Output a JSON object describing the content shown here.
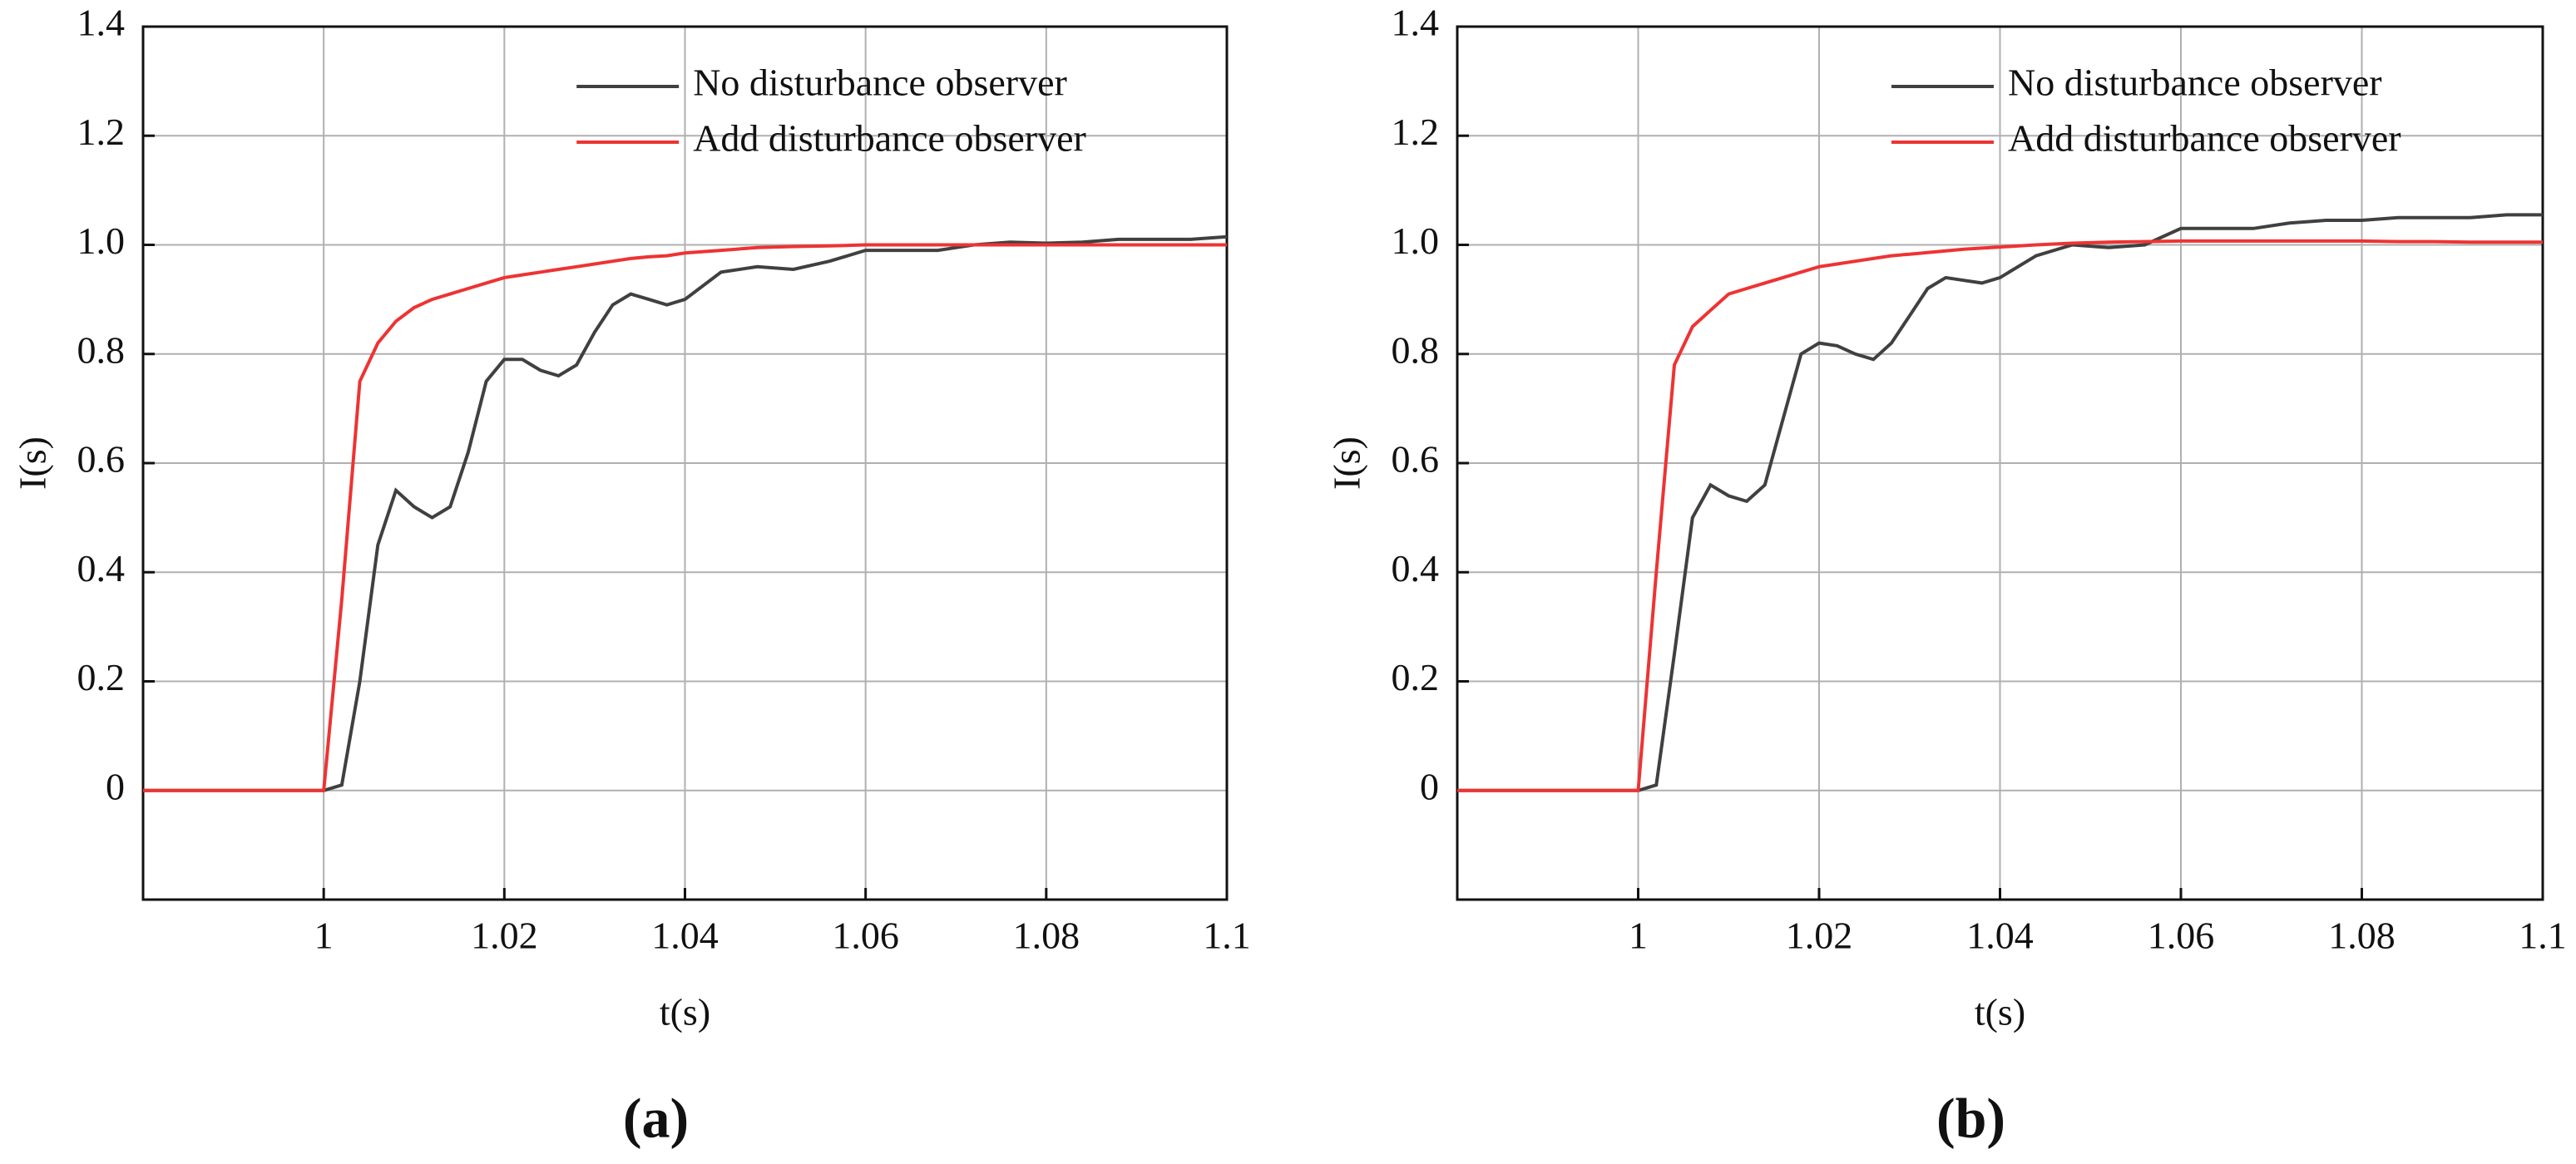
{
  "chart_data": [
    {
      "type": "line",
      "caption": "(a)",
      "xlabel": "t(s)",
      "ylabel": "I(s)",
      "xlim": [
        0.98,
        1.1
      ],
      "ylim": [
        -0.2,
        1.4
      ],
      "xticks": [
        1,
        1.02,
        1.04,
        1.06,
        1.08,
        1.1
      ],
      "yticks": [
        0,
        0.2,
        0.4,
        0.6,
        0.8,
        {
          "value": 1,
          "label": "1.0"
        },
        1.2,
        1.4
      ],
      "grid": true,
      "legend": "upper right",
      "x": [
        0.98,
        1.0,
        1.002,
        1.004,
        1.006,
        1.008,
        1.01,
        1.012,
        1.014,
        1.016,
        1.018,
        1.02,
        1.022,
        1.024,
        1.026,
        1.028,
        1.03,
        1.032,
        1.034,
        1.036,
        1.038,
        1.04,
        1.044,
        1.048,
        1.052,
        1.056,
        1.06,
        1.064,
        1.068,
        1.072,
        1.076,
        1.08,
        1.084,
        1.088,
        1.092,
        1.096,
        1.1
      ],
      "series": [
        {
          "name": "No disturbance observer",
          "color": "#404040",
          "values": [
            0,
            0,
            0.01,
            0.2,
            0.45,
            0.55,
            0.52,
            0.5,
            0.52,
            0.62,
            0.75,
            0.79,
            0.79,
            0.77,
            0.76,
            0.78,
            0.84,
            0.89,
            0.91,
            0.9,
            0.89,
            0.9,
            0.95,
            0.96,
            0.955,
            0.97,
            0.99,
            0.99,
            0.99,
            1.0,
            1.005,
            1.003,
            1.005,
            1.01,
            1.01,
            1.01,
            1.015
          ]
        },
        {
          "name": "Add disturbance observer",
          "color": "#ee3333",
          "values": [
            0,
            0,
            0.35,
            0.75,
            0.82,
            0.86,
            0.885,
            0.9,
            0.91,
            0.92,
            0.93,
            0.94,
            0.945,
            0.95,
            0.955,
            0.96,
            0.965,
            0.97,
            0.975,
            0.978,
            0.98,
            0.985,
            0.99,
            0.995,
            0.997,
            0.998,
            1.0,
            1.0,
            1.0,
            1.0,
            1.0,
            1.0,
            1.0,
            1.0,
            1.0,
            1.0,
            1.0
          ]
        }
      ]
    },
    {
      "type": "line",
      "caption": "(b)",
      "xlabel": "t(s)",
      "ylabel": "I(s)",
      "xlim": [
        0.98,
        1.1
      ],
      "ylim": [
        -0.2,
        1.4
      ],
      "xticks": [
        1,
        1.02,
        1.04,
        1.06,
        1.08,
        1.1
      ],
      "yticks": [
        0,
        0.2,
        0.4,
        0.6,
        0.8,
        {
          "value": 1,
          "label": "1.0"
        },
        1.2,
        1.4
      ],
      "grid": true,
      "legend": "upper right",
      "x": [
        0.98,
        1.0,
        1.002,
        1.004,
        1.006,
        1.008,
        1.01,
        1.012,
        1.014,
        1.016,
        1.018,
        1.02,
        1.022,
        1.024,
        1.026,
        1.028,
        1.03,
        1.032,
        1.034,
        1.036,
        1.038,
        1.04,
        1.044,
        1.048,
        1.052,
        1.056,
        1.06,
        1.064,
        1.068,
        1.072,
        1.076,
        1.08,
        1.084,
        1.088,
        1.092,
        1.096,
        1.1
      ],
      "series": [
        {
          "name": "No disturbance observer",
          "color": "#404040",
          "values": [
            0,
            0,
            0.01,
            0.25,
            0.5,
            0.56,
            0.54,
            0.53,
            0.56,
            0.68,
            0.8,
            0.82,
            0.815,
            0.8,
            0.79,
            0.82,
            0.87,
            0.92,
            0.94,
            0.935,
            0.93,
            0.94,
            0.98,
            1.0,
            0.995,
            1.0,
            1.03,
            1.03,
            1.03,
            1.04,
            1.045,
            1.045,
            1.05,
            1.05,
            1.05,
            1.055,
            1.055
          ]
        },
        {
          "name": "Add disturbance observer",
          "color": "#ee3333",
          "values": [
            0,
            0,
            0.4,
            0.78,
            0.85,
            0.88,
            0.91,
            0.92,
            0.93,
            0.94,
            0.95,
            0.96,
            0.965,
            0.97,
            0.975,
            0.98,
            0.983,
            0.986,
            0.989,
            0.992,
            0.994,
            0.996,
            1.0,
            1.003,
            1.005,
            1.006,
            1.007,
            1.007,
            1.007,
            1.007,
            1.007,
            1.007,
            1.006,
            1.006,
            1.005,
            1.005,
            1.005
          ]
        }
      ]
    }
  ]
}
